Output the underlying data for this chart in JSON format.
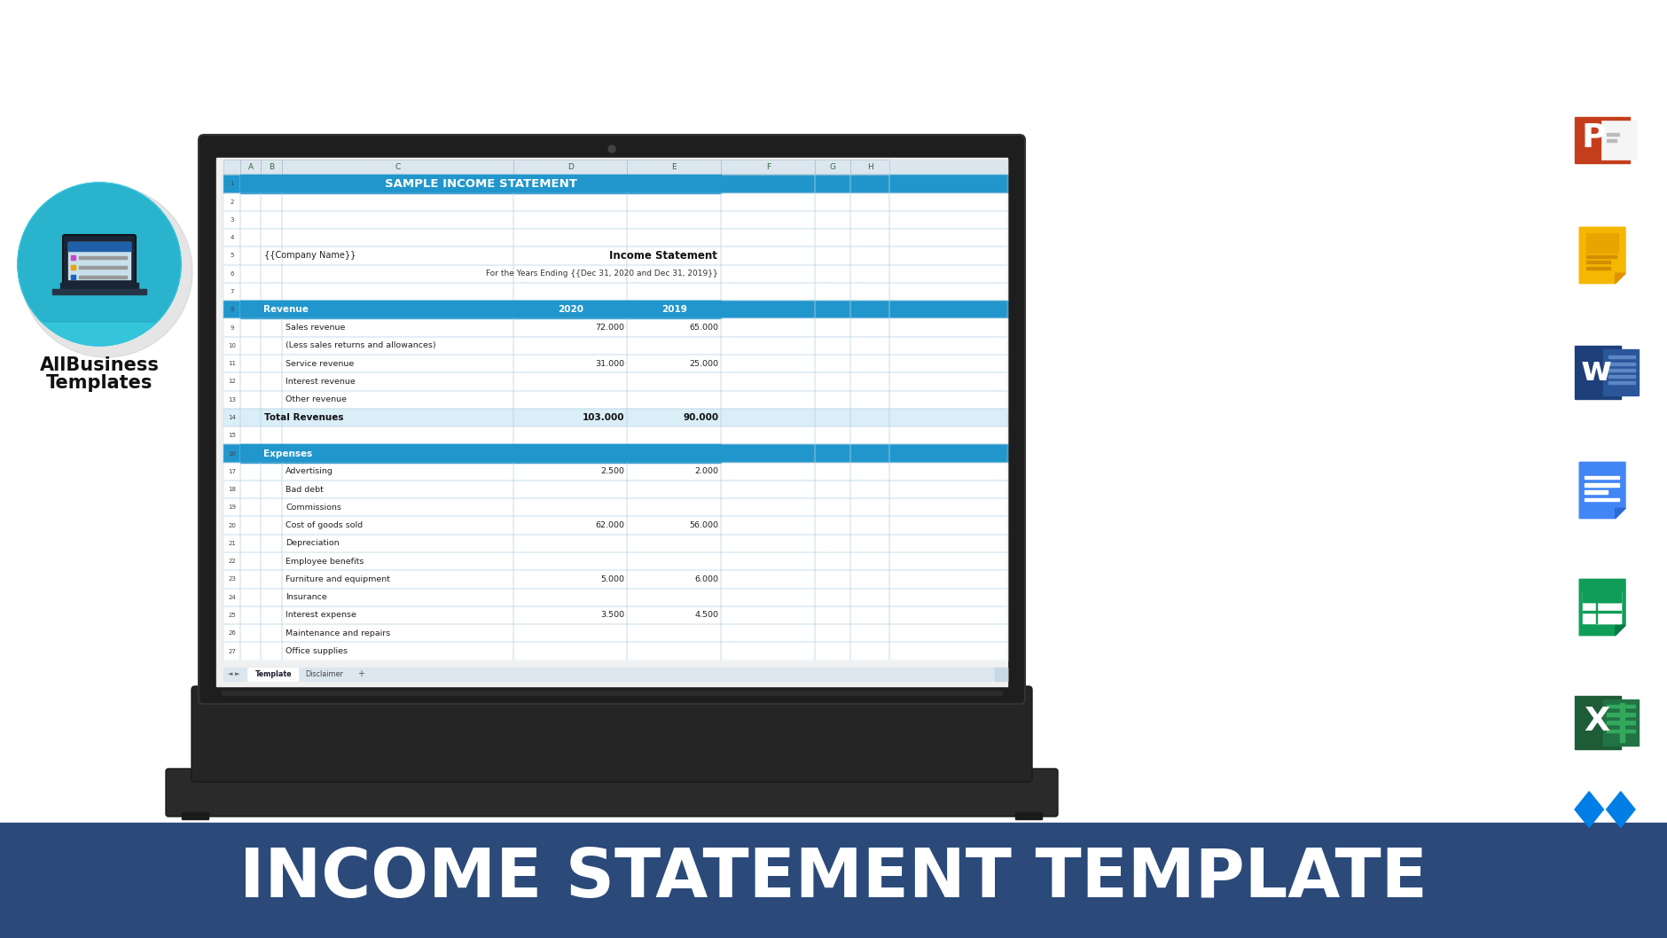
{
  "bg_color": "#ffffff",
  "bottom_bar_color": "#2b4a7a",
  "bottom_bar_text": "INCOME STATEMENT TEMPLATE",
  "bottom_bar_text_color": "#ffffff",
  "circle_color": "#34c5db",
  "allbusiness_text1": "AllBusiness",
  "allbusiness_text2": "Templates",
  "col_header_bg": "#2196cc",
  "col_header_text_color": "#ffffff",
  "section_header_bg": "#2196cc",
  "section_header_text_color": "#ffffff",
  "total_row_bg": "#daeef8",
  "normal_row_bg": "#ffffff",
  "grid_color": "#b8d4e4",
  "rows": [
    {
      "row": 1,
      "type": "header",
      "label": "SAMPLE INCOME STATEMENT",
      "col2020": "",
      "col2019": ""
    },
    {
      "row": 2,
      "type": "empty",
      "label": "",
      "col2020": "",
      "col2019": ""
    },
    {
      "row": 3,
      "type": "empty",
      "label": "",
      "col2020": "",
      "col2019": ""
    },
    {
      "row": 4,
      "type": "empty",
      "label": "",
      "col2020": "",
      "col2019": ""
    },
    {
      "row": 5,
      "type": "company",
      "label": "{{Company Name}}",
      "right_label": "Income Statement",
      "col2020": "",
      "col2019": ""
    },
    {
      "row": 6,
      "type": "subtitle",
      "label": "",
      "right_label": "For the Years Ending {{Dec 31, 2020 and Dec 31, 2019}}",
      "col2020": "",
      "col2019": ""
    },
    {
      "row": 7,
      "type": "empty",
      "label": "",
      "col2020": "",
      "col2019": ""
    },
    {
      "row": 8,
      "type": "section",
      "label": "Revenue",
      "col2020": "2020",
      "col2019": "2019"
    },
    {
      "row": 9,
      "type": "data",
      "label": "Sales revenue",
      "col2020": "72.000",
      "col2019": "65.000"
    },
    {
      "row": 10,
      "type": "data",
      "label": "(Less sales returns and allowances)",
      "col2020": "",
      "col2019": ""
    },
    {
      "row": 11,
      "type": "data",
      "label": "Service revenue",
      "col2020": "31.000",
      "col2019": "25.000"
    },
    {
      "row": 12,
      "type": "data",
      "label": "Interest revenue",
      "col2020": "",
      "col2019": ""
    },
    {
      "row": 13,
      "type": "data",
      "label": "Other revenue",
      "col2020": "",
      "col2019": ""
    },
    {
      "row": 14,
      "type": "total",
      "label": "Total Revenues",
      "col2020": "103.000",
      "col2019": "90.000"
    },
    {
      "row": 15,
      "type": "empty",
      "label": "",
      "col2020": "",
      "col2019": ""
    },
    {
      "row": 16,
      "type": "section",
      "label": "Expenses",
      "col2020": "",
      "col2019": ""
    },
    {
      "row": 17,
      "type": "data",
      "label": "Advertising",
      "col2020": "2.500",
      "col2019": "2.000"
    },
    {
      "row": 18,
      "type": "data",
      "label": "Bad debt",
      "col2020": "",
      "col2019": ""
    },
    {
      "row": 19,
      "type": "data",
      "label": "Commissions",
      "col2020": "",
      "col2019": ""
    },
    {
      "row": 20,
      "type": "data",
      "label": "Cost of goods sold",
      "col2020": "62.000",
      "col2019": "56.000"
    },
    {
      "row": 21,
      "type": "data",
      "label": "Depreciation",
      "col2020": "",
      "col2019": ""
    },
    {
      "row": 22,
      "type": "data",
      "label": "Employee benefits",
      "col2020": "",
      "col2019": ""
    },
    {
      "row": 23,
      "type": "data",
      "label": "Furniture and equipment",
      "col2020": "5.000",
      "col2019": "6.000"
    },
    {
      "row": 24,
      "type": "data",
      "label": "Insurance",
      "col2020": "",
      "col2019": ""
    },
    {
      "row": 25,
      "type": "data",
      "label": "Interest expense",
      "col2020": "3.500",
      "col2019": "4.500"
    },
    {
      "row": 26,
      "type": "data",
      "label": "Maintenance and repairs",
      "col2020": "",
      "col2019": ""
    },
    {
      "row": 27,
      "type": "data",
      "label": "Office supplies",
      "col2020": "",
      "col2019": ""
    }
  ]
}
